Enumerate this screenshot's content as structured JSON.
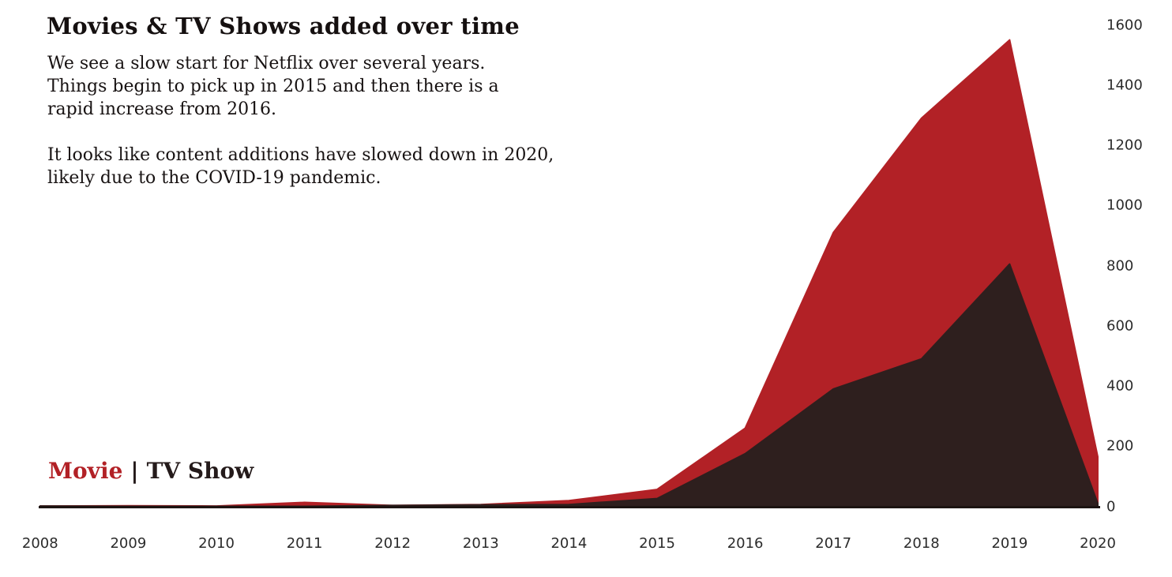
{
  "header": {
    "title": "Movies & TV Shows added over time"
  },
  "commentary": {
    "para1": [
      "We see a slow start for Netflix over several years.",
      "Things begin to pick up in 2015 and then there is a",
      "rapid increase from 2016."
    ],
    "para2": [
      "It looks like content additions have slowed down in 2020,",
      "likely due to the COVID-19 pandemic."
    ]
  },
  "legend": {
    "movie_label": "Movie",
    "separator": "|",
    "tvshow_label": "TV Show"
  },
  "colors": {
    "movie_area": "#b22126",
    "tvshow_area": "#2e1f1e",
    "axis_line": "#1d1412",
    "tick_text": "#2b2b2b",
    "background": "#ffffff"
  },
  "chart_data": {
    "type": "area",
    "mode": "overlapping",
    "title": "Movies & TV Shows added over time",
    "x": [
      2008,
      2009,
      2010,
      2011,
      2012,
      2013,
      2014,
      2015,
      2016,
      2017,
      2018,
      2019,
      2020
    ],
    "series": [
      {
        "name": "Movie",
        "color": "#b22126",
        "values": [
          1,
          2,
          1,
          13,
          3,
          6,
          19,
          56,
          260,
          910,
          1290,
          1550,
          165
        ]
      },
      {
        "name": "TV Show",
        "color": "#2e1f1e",
        "values": [
          1,
          0,
          0,
          0,
          3,
          5,
          6,
          26,
          175,
          390,
          490,
          805,
          10
        ]
      }
    ],
    "xlabel": "",
    "ylabel": "",
    "ylim": [
      0,
      1600
    ],
    "yticks": [
      0,
      200,
      400,
      600,
      800,
      1000,
      1200,
      1400,
      1600
    ],
    "y_axis_side": "right",
    "grid": false,
    "legend_position": "bottom-left"
  }
}
